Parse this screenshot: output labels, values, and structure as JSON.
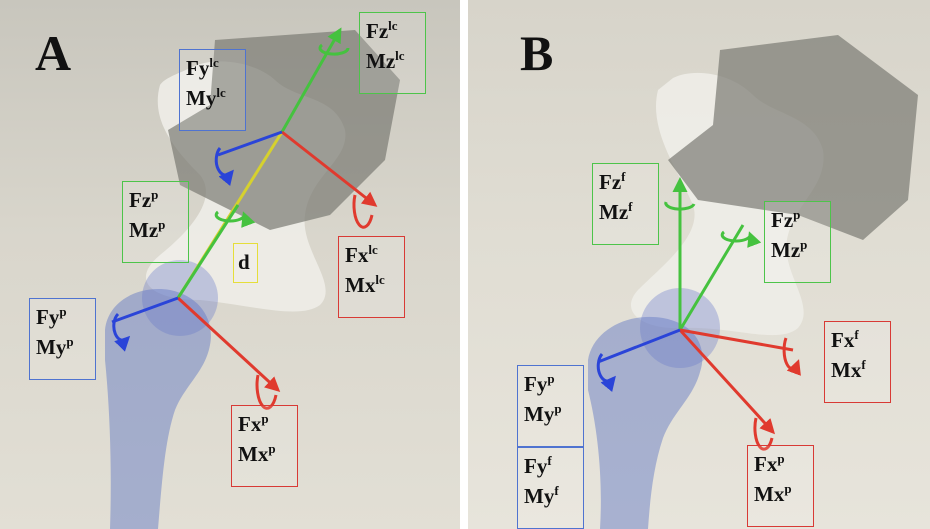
{
  "panels": {
    "a": {
      "letter": "A",
      "labels": {
        "fy_lc": {
          "l1": "Fy",
          "s1": "lc",
          "l2": "My",
          "s2": "lc"
        },
        "fz_lc": {
          "l1": "Fz",
          "s1": "lc",
          "l2": "Mz",
          "s2": "lc"
        },
        "fz_p": {
          "l1": "Fz",
          "s1": "p",
          "l2": "Mz",
          "s2": "p"
        },
        "d": {
          "l1": "d"
        },
        "fx_lc": {
          "l1": "Fx",
          "s1": "lc",
          "l2": "Mx",
          "s2": "lc"
        },
        "fy_p": {
          "l1": "Fy",
          "s1": "p",
          "l2": "My",
          "s2": "p"
        },
        "fx_p": {
          "l1": "Fx",
          "s1": "p",
          "l2": "Mx",
          "s2": "p"
        }
      }
    },
    "b": {
      "letter": "B",
      "labels": {
        "fz_f": {
          "l1": "Fz",
          "s1": "f",
          "l2": "Mz",
          "s2": "f"
        },
        "fz_p": {
          "l1": "Fz",
          "s1": "p",
          "l2": "Mz",
          "s2": "p"
        },
        "fx_f": {
          "l1": "Fx",
          "s1": "f",
          "l2": "Mx",
          "s2": "f"
        },
        "fy_p": {
          "l1": "Fy",
          "s1": "p",
          "l2": "My",
          "s2": "p"
        },
        "fy_f": {
          "l1": "Fy",
          "s1": "f",
          "l2": "My",
          "s2": "f"
        },
        "fx_p": {
          "l1": "Fx",
          "s1": "p",
          "l2": "Mx",
          "s2": "p"
        }
      }
    }
  },
  "colors": {
    "x_axis": "#e03a2e",
    "y_axis": "#2a44d8",
    "z_axis": "#45c23f",
    "distance_line": "#d6d12e",
    "load_cell": "#7b7a74",
    "bone": "#eeede8",
    "femur": "#5c73c4"
  }
}
